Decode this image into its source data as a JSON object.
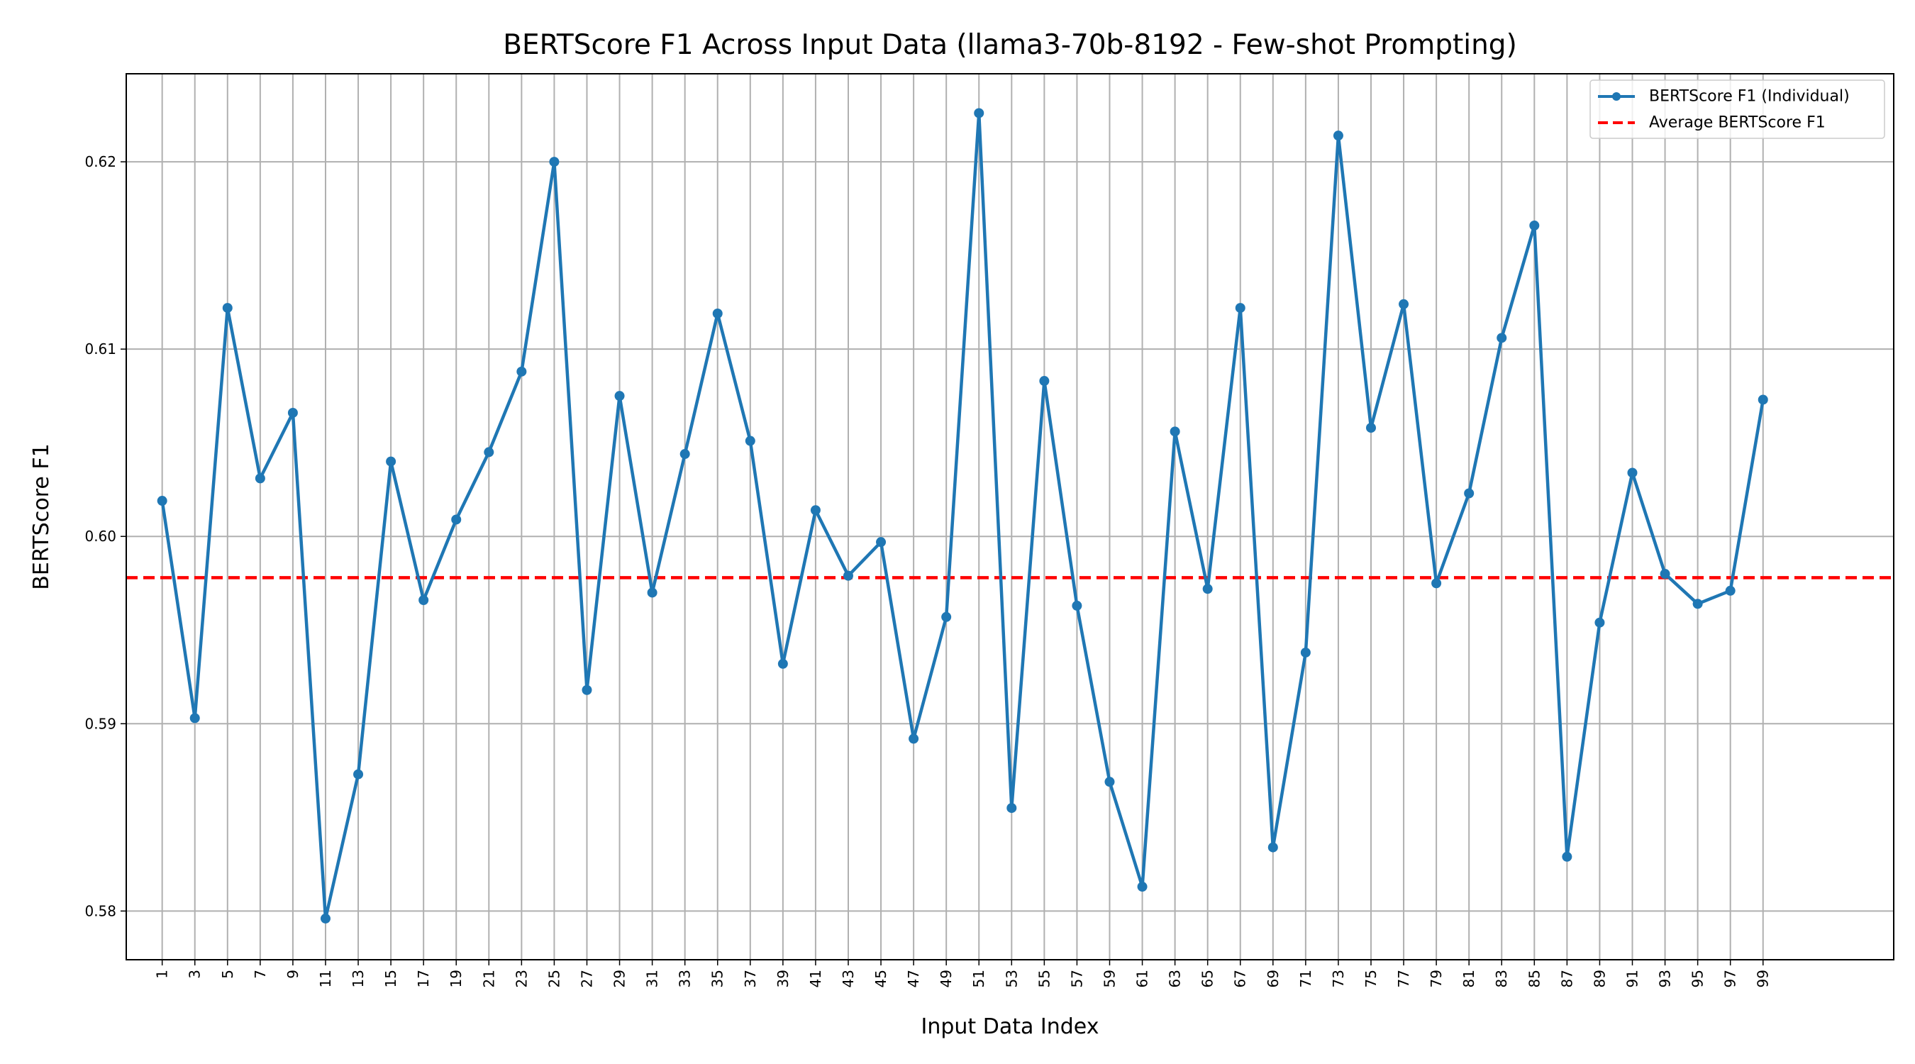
{
  "chart_data": {
    "type": "line",
    "title": "BERTScore F1 Across Input Data (llama3-70b-8192 - Few-shot Prompting)",
    "xlabel": "Input Data Index",
    "ylabel": "BERTScore F1",
    "xlim": [
      -1.2,
      107.0
    ],
    "ylim": [
      0.5774,
      0.6247
    ],
    "x": [
      1,
      3,
      5,
      7,
      9,
      11,
      13,
      15,
      17,
      19,
      21,
      23,
      25,
      27,
      29,
      31,
      33,
      35,
      37,
      39,
      41,
      43,
      45,
      47,
      49,
      51,
      53,
      55,
      57,
      59,
      61,
      63,
      65,
      67,
      69,
      71,
      73,
      75,
      77,
      79,
      81,
      83,
      85,
      87,
      89,
      91,
      93,
      95,
      97,
      99
    ],
    "x_tick_labels": [
      "1",
      "3",
      "5",
      "7",
      "9",
      "11",
      "13",
      "15",
      "17",
      "19",
      "21",
      "23",
      "25",
      "27",
      "29",
      "31",
      "33",
      "35",
      "37",
      "39",
      "41",
      "43",
      "45",
      "47",
      "49",
      "51",
      "53",
      "55",
      "57",
      "59",
      "61",
      "63",
      "65",
      "67",
      "69",
      "71",
      "73",
      "75",
      "77",
      "79",
      "81",
      "83",
      "85",
      "87",
      "89",
      "91",
      "93",
      "95",
      "97",
      "99"
    ],
    "y_ticks": [
      0.58,
      0.59,
      0.6,
      0.61,
      0.62
    ],
    "y_tick_labels": [
      "0.58",
      "0.59",
      "0.60",
      "0.61",
      "0.62"
    ],
    "grid": true,
    "legend_position": "top-right",
    "series": [
      {
        "name": "BERTScore F1 (Individual)",
        "color": "#1f77b4",
        "style": "solid-line-with-dot-markers",
        "values": [
          0.6019,
          0.5903,
          0.6122,
          0.6031,
          0.6066,
          0.5796,
          0.5873,
          0.604,
          0.5966,
          0.6009,
          0.6045,
          0.6088,
          0.62,
          0.5918,
          0.6075,
          0.597,
          0.6044,
          0.6119,
          0.6051,
          0.5932,
          0.6014,
          0.5979,
          0.5997,
          0.5892,
          0.5957,
          0.6226,
          0.5855,
          0.6083,
          0.5963,
          0.5869,
          0.5813,
          0.6056,
          0.5972,
          0.6122,
          0.5834,
          0.5938,
          0.6214,
          0.6058,
          0.6124,
          0.5975,
          0.6023,
          0.6106,
          0.6166,
          0.5829,
          0.5954,
          0.6034,
          0.598,
          0.5964,
          0.5971,
          0.6073
        ]
      },
      {
        "name": "Average BERTScore F1",
        "color": "#ff0000",
        "style": "dashed-horizontal-line",
        "value": 0.5978
      }
    ]
  }
}
